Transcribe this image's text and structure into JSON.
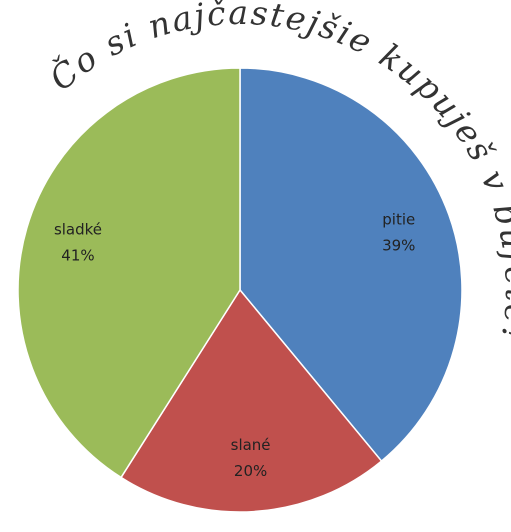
{
  "chart_data": {
    "type": "pie",
    "title": "Čo si najčastejšie kupuješ v bufete?",
    "categories": [
      "pitie",
      "slané",
      "sladké"
    ],
    "values": [
      39,
      20,
      41
    ],
    "value_labels": [
      "39%",
      "20%",
      "41%"
    ],
    "colors": [
      "#4f81bd",
      "#c0504d",
      "#9bbb59"
    ]
  }
}
